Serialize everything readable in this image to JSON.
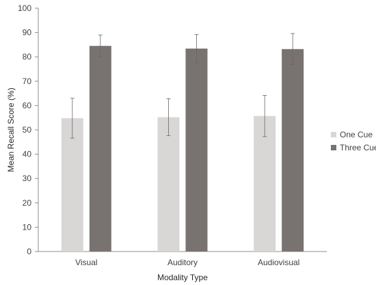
{
  "chart_data": {
    "type": "bar",
    "categories": [
      "Visual",
      "Auditory",
      "Audiovisual"
    ],
    "series": [
      {
        "name": "One Cue",
        "values": [
          54.8,
          55.2,
          55.7
        ],
        "error": [
          8.2,
          7.6,
          8.5
        ],
        "color": "#d9d6d6"
      },
      {
        "name": "Three Cue",
        "values": [
          84.5,
          83.4,
          83.2
        ],
        "error": [
          4.5,
          5.8,
          6.4
        ],
        "color": "#787370"
      }
    ],
    "xlabel": "Modality Type",
    "ylabel": "Mean Recall Score (%)",
    "ylim": [
      0,
      100
    ],
    "yticks": [
      "0",
      "10",
      "20",
      "30",
      "40",
      "50",
      "60",
      "70",
      "80",
      "90",
      "100"
    ],
    "grid": false,
    "legend_position": "right"
  }
}
